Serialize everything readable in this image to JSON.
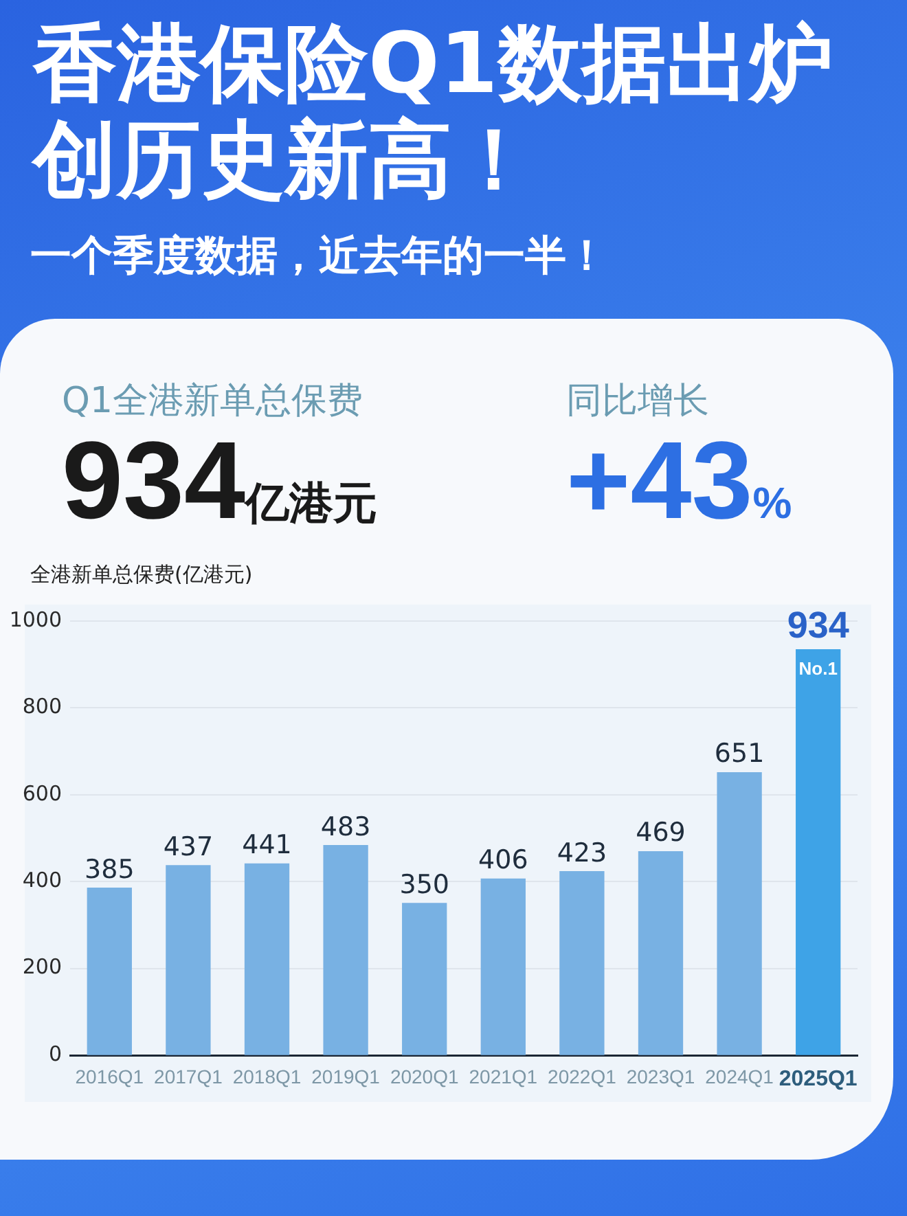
{
  "chart_data": {
    "type": "bar",
    "title": "香港保险Q1数据出炉创历史新高！",
    "subtitle": "一个季度数据，近去年的一半！",
    "ylabel": "全港新单总保费(亿港元)",
    "categories": [
      "2016Q1",
      "2017Q1",
      "2018Q1",
      "2019Q1",
      "2020Q1",
      "2021Q1",
      "2022Q1",
      "2023Q1",
      "2024Q1",
      "2025Q1"
    ],
    "values": [
      385,
      437,
      441,
      483,
      350,
      406,
      423,
      469,
      651,
      934
    ],
    "colors": [
      "#78b1e3",
      "#78b1e3",
      "#78b1e3",
      "#78b1e3",
      "#78b1e3",
      "#78b1e3",
      "#78b1e3",
      "#78b1e3",
      "#78b1e3",
      "#3ea3e7"
    ],
    "ylim": [
      0,
      1000
    ],
    "yticks": [
      0,
      200,
      400,
      600,
      800,
      1000
    ],
    "grid": "y",
    "data_labels": true,
    "annotations": [
      "Q1全港新单总保费",
      "934亿港元",
      "同比增长",
      "+43%",
      {
        "text": "No.1",
        "x": "2025Q1",
        "y": 934
      }
    ]
  }
}
